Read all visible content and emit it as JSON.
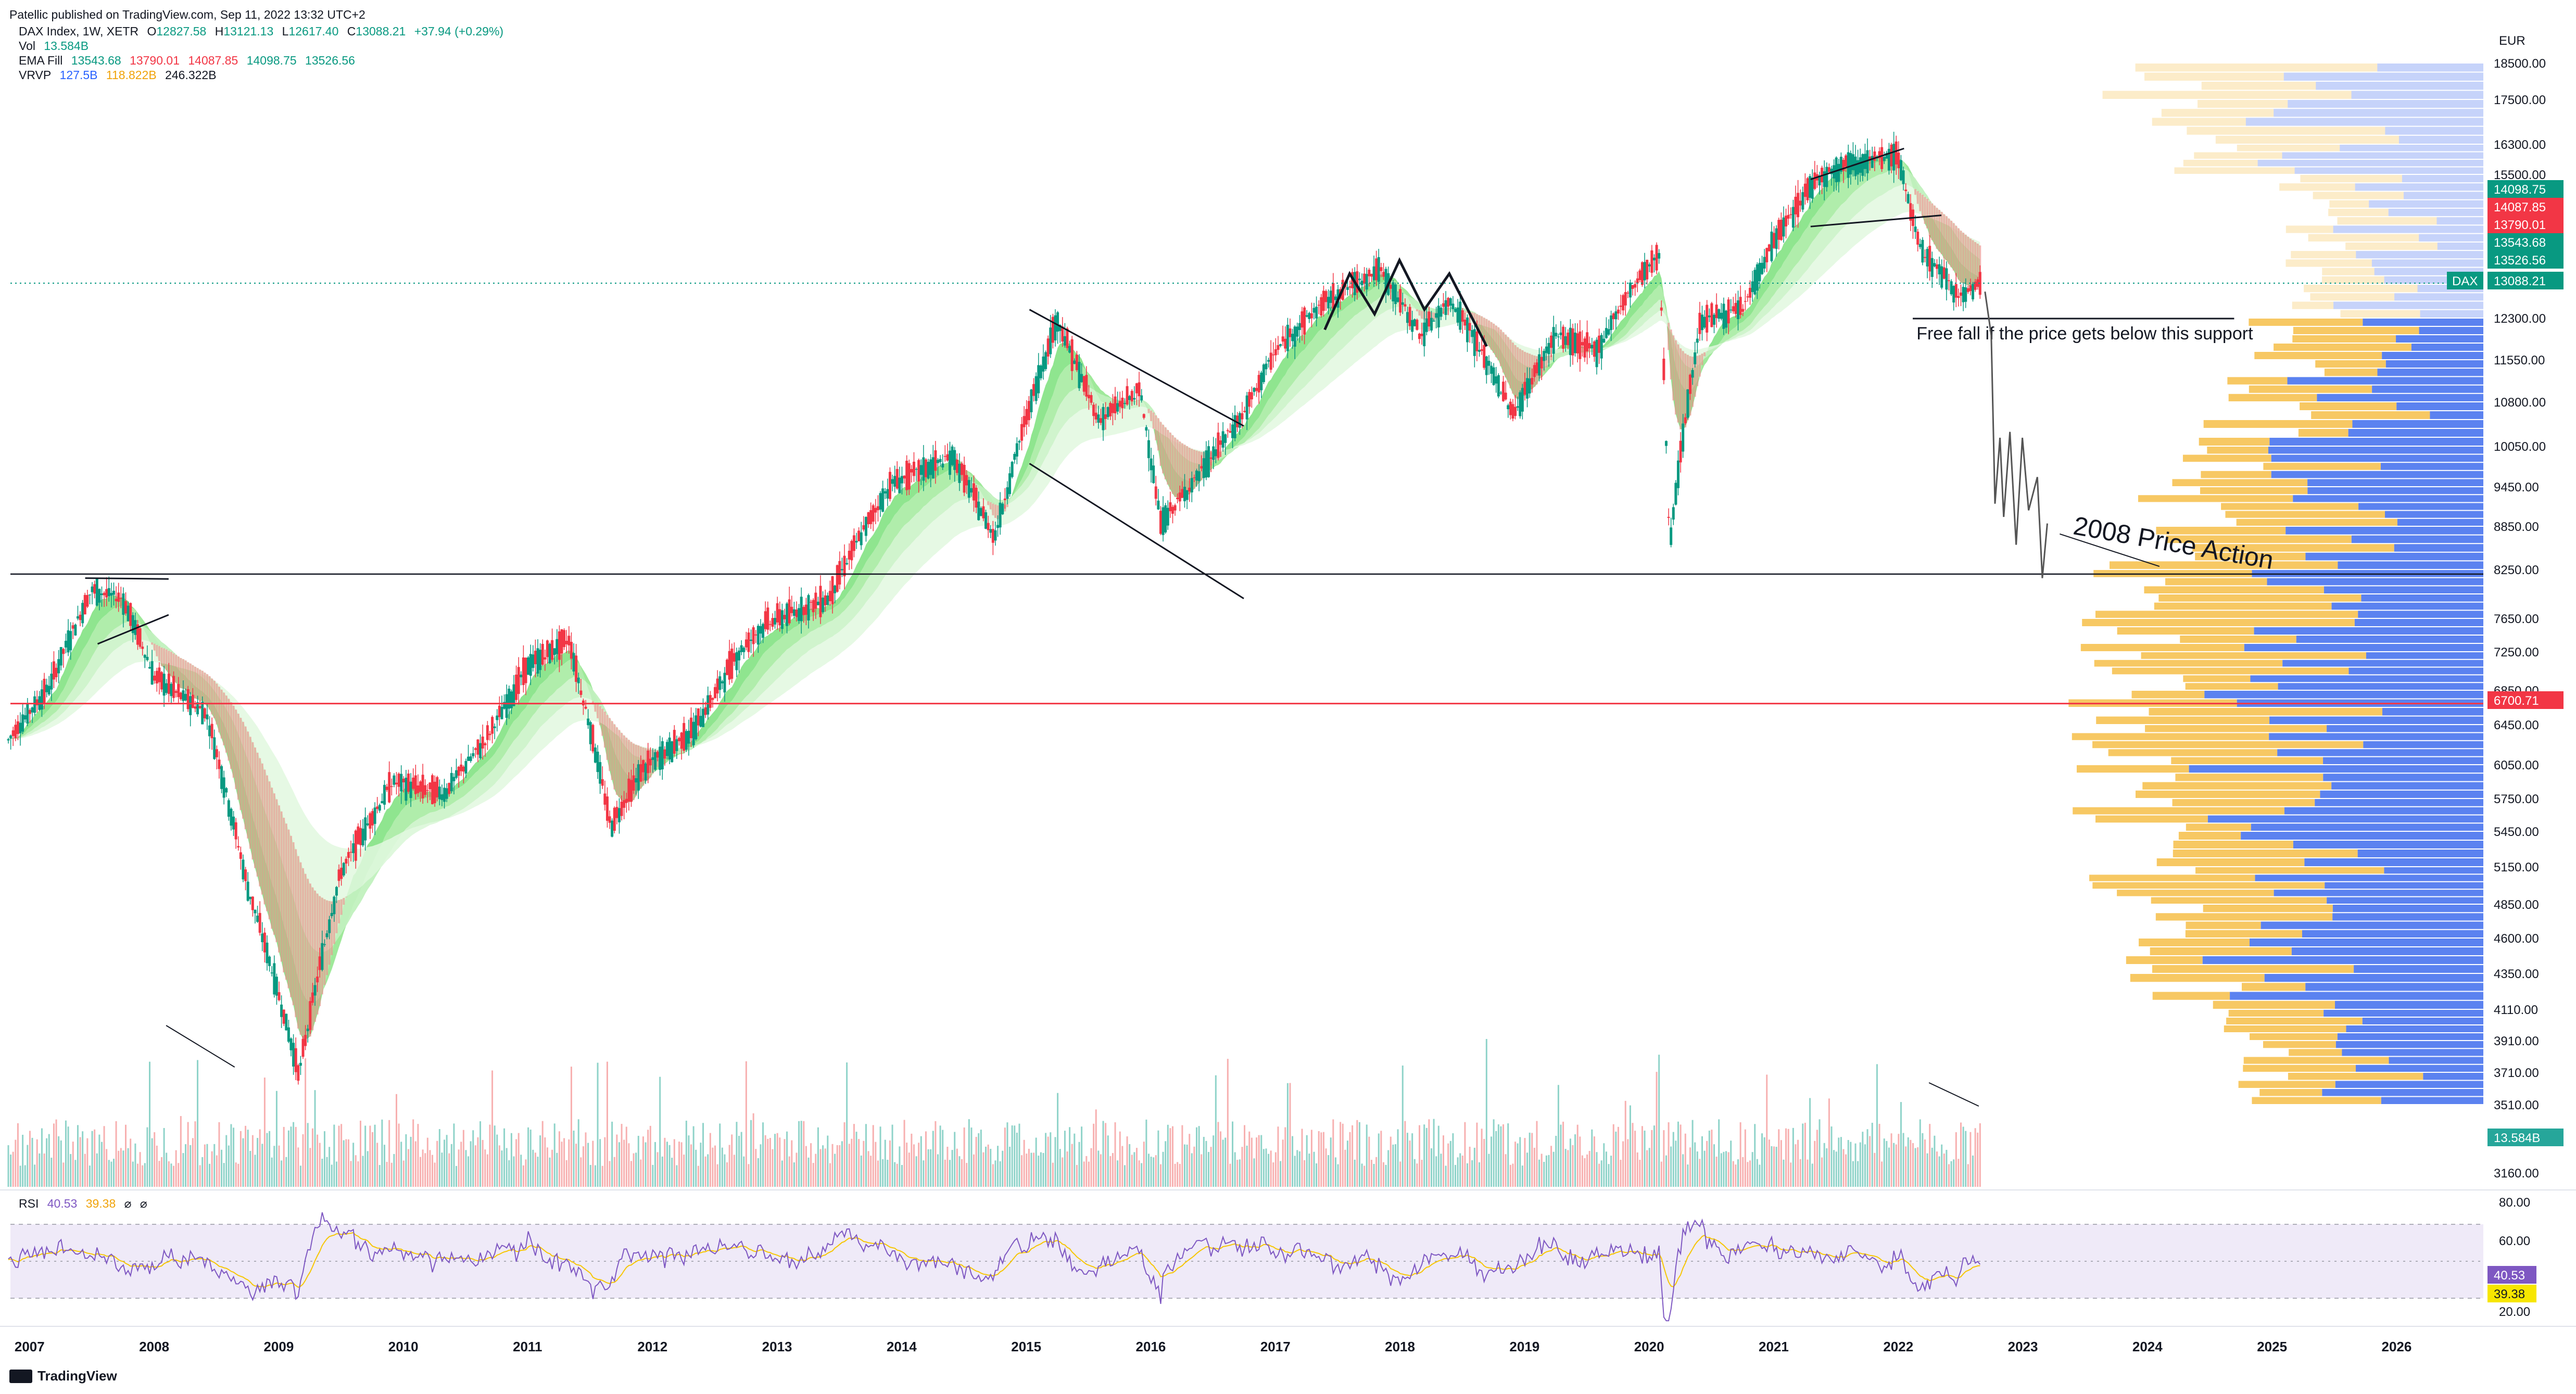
{
  "header": {
    "publisher": "Patellic published on TradingView.com, Sep 11, 2022 13:32 UTC+2",
    "symbol": "DAX Index, 1W, XETR",
    "ohlc_o_label": "O",
    "ohlc_o": "12827.58",
    "ohlc_h_label": "H",
    "ohlc_h": "13121.13",
    "ohlc_l_label": "L",
    "ohlc_l": "12617.40",
    "ohlc_c_label": "C",
    "ohlc_c": "13088.21",
    "change": "+37.94 (+0.29%)",
    "vol_label": "Vol",
    "vol_value": "13.584B",
    "ema_label": "EMA Fill",
    "ema_values": [
      "13543.68",
      "13790.01",
      "14087.85",
      "14098.75",
      "13526.56"
    ],
    "vrvp_label": "VRVP",
    "vrvp_values": [
      "127.5B",
      "118.822B",
      "246.322B"
    ],
    "rsi_label": "RSI",
    "rsi_value": "40.53",
    "rsi_ma": "39.38"
  },
  "currency": "EUR",
  "annotations": {
    "support_text": "Free fall if the price gets below this support",
    "price_action_text": "2008 Price Action"
  },
  "price_axis_labels": [
    "18500.00",
    "17500.00",
    "16300.00",
    "15500.00",
    "12300.00",
    "11550.00",
    "10800.00",
    "10050.00",
    "9450.00",
    "8850.00",
    "8250.00",
    "7650.00",
    "7250.00",
    "6850.00",
    "6450.00",
    "6050.00",
    "5750.00",
    "5450.00",
    "5150.00",
    "4850.00",
    "4600.00",
    "4350.00",
    "4110.00",
    "3910.00",
    "3710.00",
    "3510.00",
    "3160.00"
  ],
  "price_badges": [
    {
      "text": "14098.75",
      "color": "#089981"
    },
    {
      "text": "14087.85",
      "color": "#f23645"
    },
    {
      "text": "13790.01",
      "color": "#f23645"
    },
    {
      "text": "13543.68",
      "color": "#089981"
    },
    {
      "text": "13526.56",
      "color": "#089981"
    },
    {
      "text": "13088.21",
      "color": "#089981"
    },
    {
      "text": "6700.71",
      "color": "#f23645"
    },
    {
      "text": "13.584B",
      "color": "#26a69a"
    }
  ],
  "dax_tag": "DAX",
  "rsi_axis_labels": [
    "80.00",
    "60.00",
    "20.00"
  ],
  "rsi_badges": [
    {
      "text": "40.53",
      "color": "#7e57c2"
    },
    {
      "text": "39.38",
      "color": "#f7e600"
    }
  ],
  "time_axis": [
    "2007",
    "2008",
    "2009",
    "2010",
    "2011",
    "2012",
    "2013",
    "2014",
    "2015",
    "2016",
    "2017",
    "2018",
    "2019",
    "2020",
    "2021",
    "2022",
    "2023",
    "2024",
    "2025",
    "2026"
  ],
  "brand": "TradingView",
  "chart_data": {
    "type": "line",
    "title": "DAX Index, 1W, XETR",
    "series": [
      {
        "name": "DAX Index",
        "x": [
          "2006-11",
          "2007-03",
          "2007-07",
          "2007-10",
          "2008-01",
          "2008-06",
          "2008-10",
          "2009-03",
          "2009-07",
          "2009-12",
          "2010-05",
          "2010-09",
          "2011-01",
          "2011-05",
          "2011-09",
          "2011-12",
          "2012-05",
          "2012-09",
          "2012-12",
          "2013-06",
          "2013-12",
          "2014-06",
          "2014-10",
          "2015-04",
          "2015-08",
          "2015-12",
          "2016-02",
          "2016-06",
          "2016-10",
          "2017-01",
          "2017-06",
          "2017-11",
          "2018-03",
          "2018-06",
          "2018-10",
          "2018-12",
          "2019-04",
          "2019-08",
          "2019-12",
          "2020-02",
          "2020-03",
          "2020-06",
          "2020-10",
          "2021-01",
          "2021-05",
          "2021-08",
          "2021-11",
          "2022-01",
          "2022-03",
          "2022-07",
          "2022-09"
        ],
        "values": [
          6300,
          6900,
          8000,
          7900,
          7000,
          6600,
          5000,
          3700,
          5100,
          5900,
          5800,
          6300,
          7100,
          7400,
          5500,
          6000,
          6400,
          7200,
          7600,
          7900,
          9500,
          9900,
          8700,
          12300,
          10500,
          11000,
          8900,
          9700,
          10600,
          11700,
          12700,
          13400,
          12000,
          12700,
          11300,
          10600,
          12000,
          11700,
          13200,
          13700,
          8600,
          12300,
          12500,
          14000,
          15400,
          15800,
          15900,
          16000,
          13900,
          12800,
          13088
        ]
      }
    ],
    "levels": [
      {
        "name": "support",
        "value": 12300
      },
      {
        "name": "level",
        "value": 8200
      },
      {
        "name": "level",
        "value": 6700.71
      }
    ],
    "xlabel": "",
    "ylabel": "EUR",
    "ylim": [
      3160,
      18500
    ],
    "grid": false
  }
}
